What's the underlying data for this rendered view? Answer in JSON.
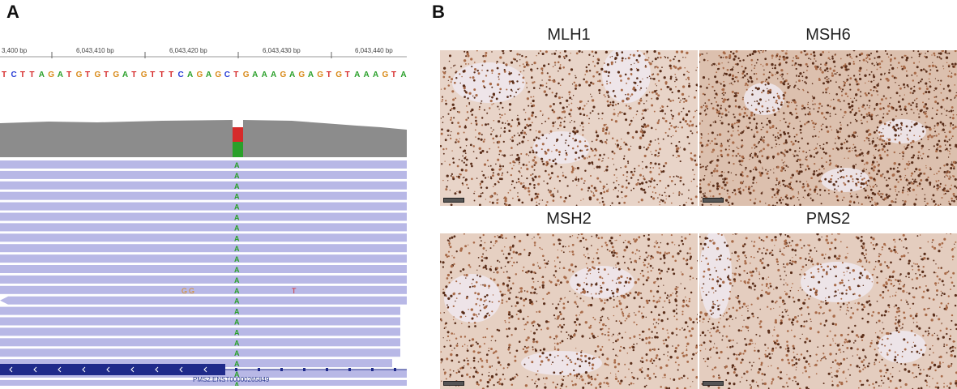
{
  "panels": {
    "a_label": "A",
    "b_label": "B"
  },
  "igv": {
    "ruler_labels": [
      "3,400 bp",
      "6,043,410 bp",
      "6,043,420 bp",
      "6,043,430 bp",
      "6,043,440 bp"
    ],
    "sequence": "TCTTAGATGTGTGATGTTTCAGAGCTGAAAGAGAGTGTAAAGTA",
    "variant_base": "A",
    "mismatch_bases": [
      "G",
      "G",
      "T"
    ],
    "gene_label": "PMS2:ENST00000265849",
    "colors": {
      "A": "#2aa02a",
      "C": "#2b3fd6",
      "G": "#d98b1a",
      "T": "#d62b2b",
      "coverage": "#8c8c8c",
      "read": "#b8b8e6",
      "gene": "#1f2a8a"
    }
  },
  "ihc": {
    "stains": [
      {
        "name": "MLH1"
      },
      {
        "name": "MSH6"
      },
      {
        "name": "MSH2"
      },
      {
        "name": "PMS2"
      }
    ]
  }
}
